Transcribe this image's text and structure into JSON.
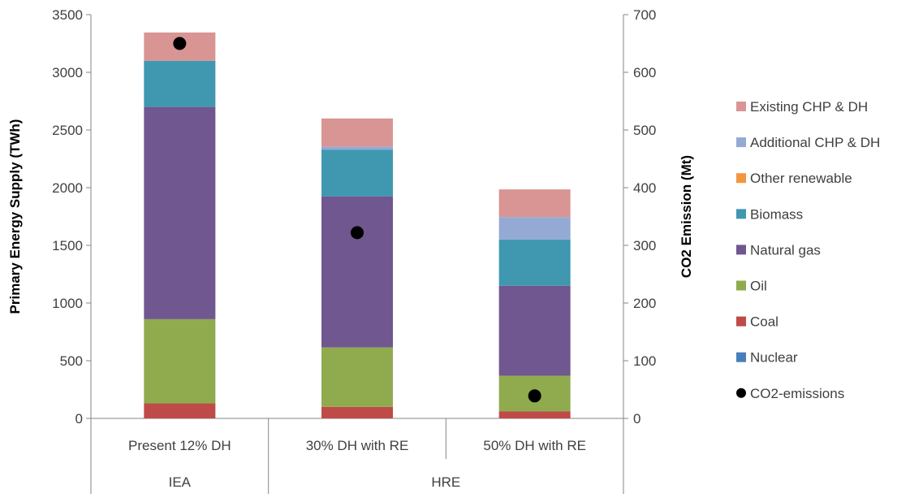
{
  "chart_data": {
    "type": "bar",
    "stacked": true,
    "categories": [
      "Present 12% DH",
      "30% DH with RE",
      "50% DH with RE"
    ],
    "groups": [
      {
        "label": "IEA",
        "categories": [
          0
        ]
      },
      {
        "label": "HRE",
        "categories": [
          1,
          2
        ]
      }
    ],
    "ylabel": "Primary Energy Supply (TWh)",
    "y2label": "CO2 Emission (Mt)",
    "ylim": [
      0,
      3500
    ],
    "y2lim": [
      0,
      700
    ],
    "yticks": [
      0,
      500,
      1000,
      1500,
      2000,
      2500,
      3000,
      3500
    ],
    "y2ticks": [
      0,
      100,
      200,
      300,
      400,
      500,
      600,
      700
    ],
    "grid": false,
    "legend_position": "right",
    "series": [
      {
        "name": "Nuclear",
        "color": "#4a7ebb",
        "values": [
          0,
          0,
          0
        ]
      },
      {
        "name": "Coal",
        "color": "#be4b48",
        "values": [
          130,
          100,
          60
        ]
      },
      {
        "name": "Oil",
        "color": "#8fab4e",
        "values": [
          730,
          515,
          310
        ]
      },
      {
        "name": "Natural gas",
        "color": "#70578f",
        "values": [
          1840,
          1310,
          780
        ]
      },
      {
        "name": "Biomass",
        "color": "#3f98b0",
        "values": [
          400,
          405,
          400
        ]
      },
      {
        "name": "Other renewable",
        "color": "#f39640",
        "values": [
          0,
          0,
          0
        ]
      },
      {
        "name": "Additional CHP & DH",
        "color": "#94aad4",
        "values": [
          0,
          25,
          195
        ]
      },
      {
        "name": "Existing CHP & DH",
        "color": "#d89594",
        "values": [
          245,
          245,
          240
        ]
      }
    ],
    "legend_order": [
      "Existing CHP & DH",
      "Additional CHP & DH",
      "Other renewable",
      "Biomass",
      "Natural gas",
      "Oil",
      "Coal",
      "Nuclear",
      "CO2-emissions"
    ],
    "secondary_series": {
      "name": "CO2-emissions",
      "type": "scatter",
      "axis": "y2",
      "color": "#000000",
      "values": [
        650,
        322,
        39
      ]
    }
  }
}
